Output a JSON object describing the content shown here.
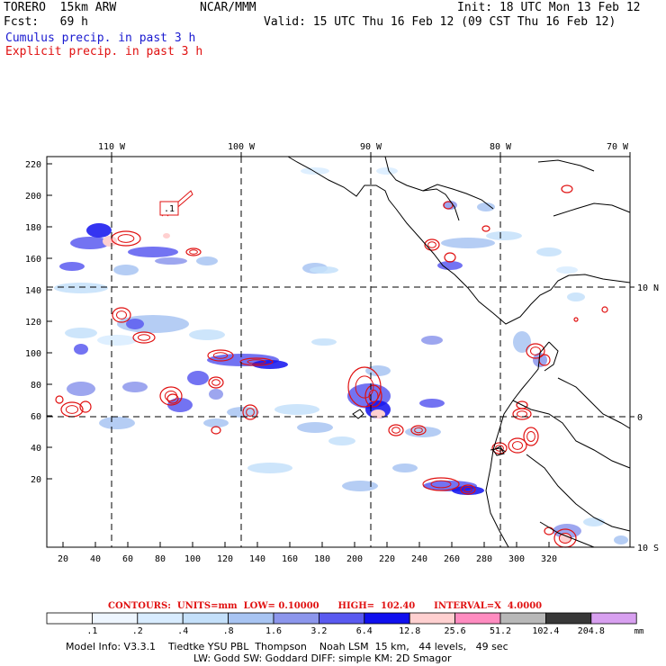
{
  "header": {
    "model": "TORERO  15km ARW",
    "org": "NCAR/MMM",
    "init": "Init: 18 UTC Mon 13 Feb 12",
    "fcst": "Fcst:   69 h",
    "valid": "Valid: 15 UTC Thu 16 Feb 12 (09 CST Thu 16 Feb 12)",
    "cumulus": "Cumulus precip. in past 3 h",
    "explicit": "Explicit precip. in past 3 h"
  },
  "map": {
    "lon_labels": [
      "110 W",
      "100 W",
      "90 W",
      "80 W",
      "70 W"
    ],
    "lat_labels": [
      "10 N",
      "0",
      "10 S"
    ],
    "grid_x_labels": [
      "20",
      "40",
      "60",
      "80",
      "100",
      "120",
      "140",
      "160",
      "180",
      "200",
      "220",
      "240",
      "260",
      "280",
      "300",
      "320"
    ],
    "grid_y_labels": [
      "220",
      "200",
      "180",
      "160",
      "140",
      "120",
      "100",
      "80",
      "60",
      "40",
      "20"
    ],
    "box_label": ".1",
    "colors": {
      "cumulus": "#1a1ad0",
      "explicit": "#e01010",
      "coast": "#000000",
      "grid": "#000000"
    }
  },
  "contours": {
    "text": "CONTOURS:  UNITS=mm  LOW= 0.10000      HIGH=  102.40      INTERVAL=X  4.0000"
  },
  "colorbar": {
    "labels": [
      ".1",
      ".2",
      ".4",
      ".8",
      "1.6",
      "3.2",
      "6.4",
      "12.8",
      "25.6",
      "51.2",
      "102.4",
      "204.8"
    ],
    "unit": "mm",
    "colors": [
      "#ffffff",
      "#eef6ff",
      "#d8ecff",
      "#c4e0fa",
      "#a8c4f2",
      "#8c96ec",
      "#5a5af0",
      "#1010ee",
      "#ffd0d0",
      "#ff8cc0",
      "#b8b8b8",
      "#383838",
      "#d8a0f0"
    ]
  },
  "footer": {
    "line1": "Model Info: V3.3.1    Tiedtke YSU PBL  Thompson    Noah LSM  15 km,   44 levels,   49 sec",
    "line2": "LW: Godd SW: Goddard DIFF: simple KM: 2D Smagor"
  }
}
